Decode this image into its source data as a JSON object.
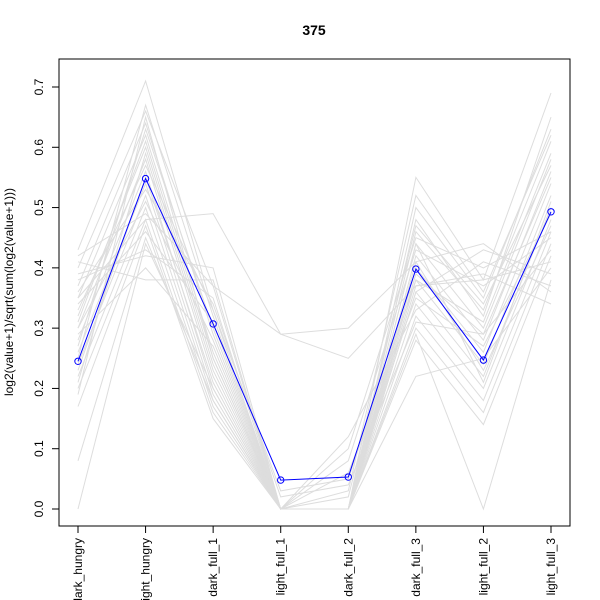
{
  "chart_data": {
    "type": "line",
    "title": "375",
    "xlabel": "",
    "ylabel": "log2(value+1)/sqrt(sum(log2(value+1)))",
    "ylim": [
      0,
      0.7
    ],
    "yticks": [
      "0.0",
      "0.1",
      "0.2",
      "0.3",
      "0.4",
      "0.5",
      "0.6",
      "0.7"
    ],
    "categories": [
      "dark_hungry",
      "light_hungry",
      "dark_full_1",
      "light_full_1",
      "dark_full_2",
      "dark_full_3",
      "light_full_2",
      "light_full_3"
    ],
    "highlight_color": "#0000ff",
    "background_color": "#dddddd",
    "series": [
      {
        "values": [
          0.245,
          0.548,
          0.307,
          0.048,
          0.053,
          0.398,
          0.247,
          0.493
        ]
      }
    ],
    "background_series": [
      [
        0.43,
        0.71,
        0.33,
        0.0,
        0.0,
        0.55,
        0.38,
        0.69
      ],
      [
        0.4,
        0.66,
        0.37,
        0.0,
        0.0,
        0.5,
        0.35,
        0.63
      ],
      [
        0.37,
        0.64,
        0.29,
        0.0,
        0.0,
        0.46,
        0.33,
        0.61
      ],
      [
        0.35,
        0.62,
        0.26,
        0.0,
        0.0,
        0.44,
        0.3,
        0.58
      ],
      [
        0.32,
        0.6,
        0.24,
        0.0,
        0.0,
        0.42,
        0.28,
        0.56
      ],
      [
        0.3,
        0.58,
        0.22,
        0.0,
        0.0,
        0.4,
        0.26,
        0.54
      ],
      [
        0.28,
        0.56,
        0.2,
        0.0,
        0.0,
        0.38,
        0.24,
        0.52
      ],
      [
        0.26,
        0.54,
        0.19,
        0.0,
        0.0,
        0.36,
        0.22,
        0.5
      ],
      [
        0.24,
        0.52,
        0.18,
        0.0,
        0.0,
        0.34,
        0.2,
        0.48
      ],
      [
        0.22,
        0.5,
        0.17,
        0.0,
        0.0,
        0.32,
        0.18,
        0.46
      ],
      [
        0.2,
        0.48,
        0.16,
        0.0,
        0.0,
        0.3,
        0.16,
        0.44
      ],
      [
        0.17,
        0.47,
        0.15,
        0.0,
        0.0,
        0.28,
        0.14,
        0.42
      ],
      [
        0.08,
        0.45,
        0.18,
        0.0,
        0.0,
        0.22,
        0.25,
        0.4
      ],
      [
        0.0,
        0.44,
        0.2,
        0.0,
        0.0,
        0.29,
        0.0,
        0.38
      ],
      [
        0.35,
        0.48,
        0.49,
        0.29,
        0.3,
        0.41,
        0.44,
        0.36
      ],
      [
        0.42,
        0.49,
        0.37,
        0.29,
        0.25,
        0.37,
        0.39,
        0.34
      ],
      [
        0.38,
        0.43,
        0.35,
        0.0,
        0.12,
        0.33,
        0.41,
        0.37
      ],
      [
        0.34,
        0.46,
        0.31,
        0.0,
        0.1,
        0.45,
        0.4,
        0.46
      ],
      [
        0.3,
        0.51,
        0.28,
        0.0,
        0.08,
        0.43,
        0.37,
        0.45
      ],
      [
        0.29,
        0.4,
        0.27,
        0.0,
        0.06,
        0.35,
        0.27,
        0.49
      ],
      [
        0.36,
        0.53,
        0.34,
        0.02,
        0.04,
        0.31,
        0.29,
        0.55
      ],
      [
        0.33,
        0.57,
        0.33,
        0.03,
        0.05,
        0.38,
        0.31,
        0.59
      ],
      [
        0.31,
        0.61,
        0.25,
        0.0,
        0.02,
        0.47,
        0.34,
        0.57
      ],
      [
        0.27,
        0.63,
        0.3,
        0.0,
        0.03,
        0.52,
        0.36,
        0.62
      ],
      [
        0.25,
        0.67,
        0.32,
        0.0,
        0.0,
        0.48,
        0.32,
        0.65
      ],
      [
        0.23,
        0.55,
        0.21,
        0.0,
        0.0,
        0.39,
        0.29,
        0.43
      ],
      [
        0.21,
        0.59,
        0.23,
        0.0,
        0.0,
        0.41,
        0.23,
        0.47
      ],
      [
        0.19,
        0.65,
        0.25,
        0.0,
        0.0,
        0.44,
        0.21,
        0.51
      ],
      [
        0.39,
        0.42,
        0.4,
        0.0,
        0.0,
        0.37,
        0.38,
        0.41
      ],
      [
        0.41,
        0.38,
        0.38,
        0.0,
        0.0,
        0.36,
        0.43,
        0.39
      ]
    ]
  }
}
